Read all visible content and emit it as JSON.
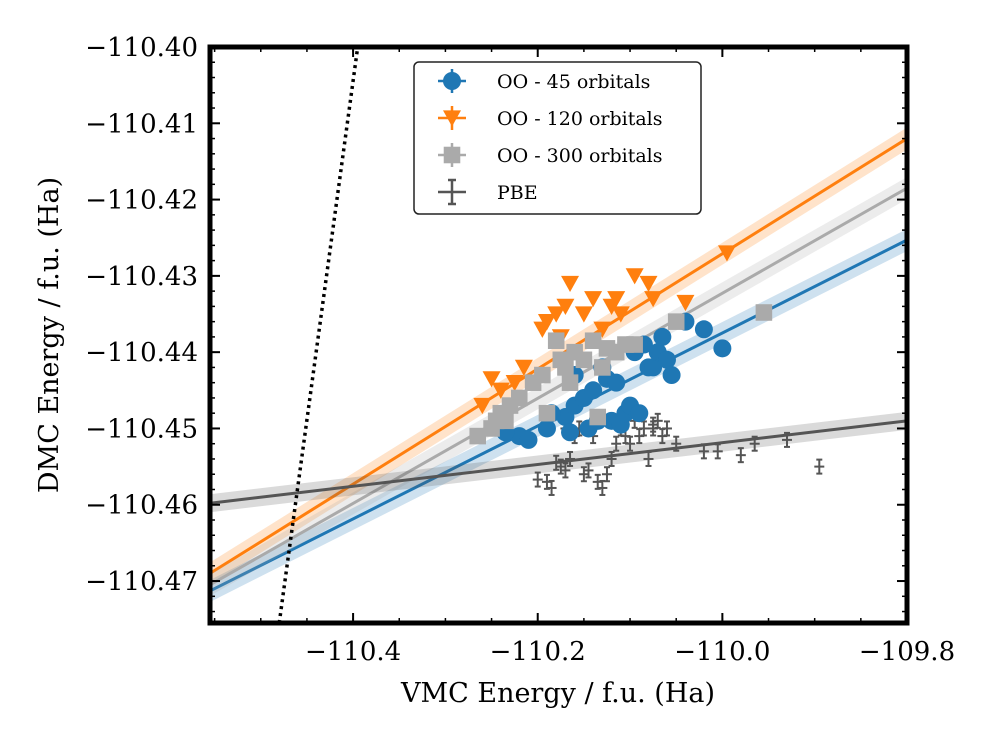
{
  "chart_data": {
    "type": "scatter",
    "title": "",
    "xlabel": "VMC Energy / f.u. (Ha)",
    "ylabel": "DMC Energy / f.u. (Ha)",
    "xlim": [
      -110.555,
      -109.8
    ],
    "ylim": [
      -110.4755,
      -110.4
    ],
    "x_ticks": [
      {
        "value": -110.4,
        "label": "−110.4"
      },
      {
        "value": -110.2,
        "label": "−110.2"
      },
      {
        "value": -110.0,
        "label": "−110.0"
      },
      {
        "value": -109.8,
        "label": "−109.8"
      }
    ],
    "y_ticks": [
      {
        "value": -110.4,
        "label": "−110.40"
      },
      {
        "value": -110.41,
        "label": "−110.41"
      },
      {
        "value": -110.42,
        "label": "−110.42"
      },
      {
        "value": -110.43,
        "label": "−110.43"
      },
      {
        "value": -110.44,
        "label": "−110.44"
      },
      {
        "value": -110.45,
        "label": "−110.45"
      },
      {
        "value": -110.46,
        "label": "−110.46"
      },
      {
        "value": -110.47,
        "label": "−110.47"
      }
    ],
    "legend_position": "top-center",
    "reference_line": {
      "style": "dotted",
      "color": "#000000",
      "x": [
        -110.48,
        -110.395
      ],
      "y": [
        -110.4755,
        -110.4
      ]
    },
    "series": [
      {
        "name": "OO - 45 orbitals",
        "color": "#1f77b4",
        "marker": "circle",
        "fit": {
          "x": [
            -110.555,
            -109.8
          ],
          "y": [
            -110.4713,
            -110.4253
          ]
        },
        "points": [
          [
            -110.22,
            -110.451
          ],
          [
            -110.235,
            -110.4505
          ],
          [
            -110.21,
            -110.4515
          ],
          [
            -110.19,
            -110.45
          ],
          [
            -110.17,
            -110.4485
          ],
          [
            -110.165,
            -110.4505
          ],
          [
            -110.16,
            -110.447
          ],
          [
            -110.15,
            -110.446
          ],
          [
            -110.145,
            -110.45
          ],
          [
            -110.14,
            -110.445
          ],
          [
            -110.135,
            -110.449
          ],
          [
            -110.125,
            -110.4435
          ],
          [
            -110.12,
            -110.449
          ],
          [
            -110.11,
            -110.4495
          ],
          [
            -110.105,
            -110.448
          ],
          [
            -110.1,
            -110.447
          ],
          [
            -110.095,
            -110.44
          ],
          [
            -110.09,
            -110.448
          ],
          [
            -110.085,
            -110.439
          ],
          [
            -110.08,
            -110.442
          ],
          [
            -110.075,
            -110.442
          ],
          [
            -110.07,
            -110.44
          ],
          [
            -110.065,
            -110.438
          ],
          [
            -110.06,
            -110.441
          ],
          [
            -110.055,
            -110.443
          ],
          [
            -110.04,
            -110.436
          ],
          [
            -110.02,
            -110.437
          ],
          [
            -110.0,
            -110.4395
          ],
          [
            -110.13,
            -110.442
          ],
          [
            -110.115,
            -110.444
          ],
          [
            -110.185,
            -110.448
          ],
          [
            -110.16,
            -110.443
          ]
        ]
      },
      {
        "name": "OO - 120 orbitals",
        "color": "#ff7f0e",
        "marker": "triangle-down",
        "fit": {
          "x": [
            -110.555,
            -109.8
          ],
          "y": [
            -110.469,
            -110.412
          ]
        },
        "points": [
          [
            -110.26,
            -110.447
          ],
          [
            -110.25,
            -110.4435
          ],
          [
            -110.24,
            -110.445
          ],
          [
            -110.225,
            -110.444
          ],
          [
            -110.215,
            -110.442
          ],
          [
            -110.195,
            -110.437
          ],
          [
            -110.19,
            -110.436
          ],
          [
            -110.18,
            -110.435
          ],
          [
            -110.17,
            -110.434
          ],
          [
            -110.165,
            -110.431
          ],
          [
            -110.15,
            -110.435
          ],
          [
            -110.14,
            -110.433
          ],
          [
            -110.13,
            -110.437
          ],
          [
            -110.12,
            -110.434
          ],
          [
            -110.115,
            -110.433
          ],
          [
            -110.11,
            -110.435
          ],
          [
            -110.095,
            -110.43
          ],
          [
            -110.08,
            -110.431
          ],
          [
            -110.075,
            -110.433
          ],
          [
            -110.04,
            -110.4335
          ],
          [
            -109.995,
            -110.427
          ],
          [
            -110.175,
            -110.438
          ]
        ]
      },
      {
        "name": "OO - 300 orbitals",
        "color": "#aaaaaa",
        "marker": "square",
        "fit": {
          "x": [
            -110.555,
            -109.8
          ],
          "y": [
            -110.4705,
            -110.4185
          ]
        },
        "points": [
          [
            -110.265,
            -110.451
          ],
          [
            -110.25,
            -110.45
          ],
          [
            -110.245,
            -110.449
          ],
          [
            -110.24,
            -110.448
          ],
          [
            -110.23,
            -110.447
          ],
          [
            -110.22,
            -110.446
          ],
          [
            -110.205,
            -110.444
          ],
          [
            -110.195,
            -110.443
          ],
          [
            -110.19,
            -110.448
          ],
          [
            -110.18,
            -110.4385
          ],
          [
            -110.175,
            -110.441
          ],
          [
            -110.17,
            -110.442
          ],
          [
            -110.165,
            -110.444
          ],
          [
            -110.16,
            -110.44
          ],
          [
            -110.15,
            -110.441
          ],
          [
            -110.14,
            -110.4385
          ],
          [
            -110.135,
            -110.4485
          ],
          [
            -110.13,
            -110.442
          ],
          [
            -110.125,
            -110.4395
          ],
          [
            -110.115,
            -110.44
          ],
          [
            -110.105,
            -110.439
          ],
          [
            -110.095,
            -110.439
          ],
          [
            -110.05,
            -110.436
          ],
          [
            -109.955,
            -110.4348
          ],
          [
            -110.235,
            -110.449
          ]
        ]
      },
      {
        "name": "PBE",
        "color": "#555555",
        "marker": "errorbar",
        "fit": {
          "x": [
            -110.555,
            -109.8
          ],
          "y": [
            -110.4598,
            -110.449
          ]
        },
        "points": [
          [
            -110.2,
            -110.4567
          ],
          [
            -110.19,
            -110.457
          ],
          [
            -110.185,
            -110.4578
          ],
          [
            -110.18,
            -110.4545
          ],
          [
            -110.175,
            -110.455
          ],
          [
            -110.17,
            -110.4555
          ],
          [
            -110.165,
            -110.454
          ],
          [
            -110.16,
            -110.451
          ],
          [
            -110.155,
            -110.45
          ],
          [
            -110.15,
            -110.456
          ],
          [
            -110.145,
            -110.4555
          ],
          [
            -110.14,
            -110.451
          ],
          [
            -110.135,
            -110.457
          ],
          [
            -110.13,
            -110.4578
          ],
          [
            -110.125,
            -110.456
          ],
          [
            -110.12,
            -110.454
          ],
          [
            -110.115,
            -110.452
          ],
          [
            -110.11,
            -110.45
          ],
          [
            -110.105,
            -110.451
          ],
          [
            -110.1,
            -110.452
          ],
          [
            -110.095,
            -110.449
          ],
          [
            -110.09,
            -110.451
          ],
          [
            -110.085,
            -110.45
          ],
          [
            -110.08,
            -110.454
          ],
          [
            -110.075,
            -110.45
          ],
          [
            -110.07,
            -110.449
          ],
          [
            -110.065,
            -110.451
          ],
          [
            -110.06,
            -110.45
          ],
          [
            -110.05,
            -110.452
          ],
          [
            -110.02,
            -110.453
          ],
          [
            -110.005,
            -110.453
          ],
          [
            -109.98,
            -110.4535
          ],
          [
            -109.965,
            -110.452
          ],
          [
            -109.93,
            -110.4515
          ],
          [
            -109.895,
            -110.455
          ],
          [
            -110.17,
            -110.45
          ],
          [
            -110.075,
            -110.4495
          ]
        ]
      }
    ]
  }
}
